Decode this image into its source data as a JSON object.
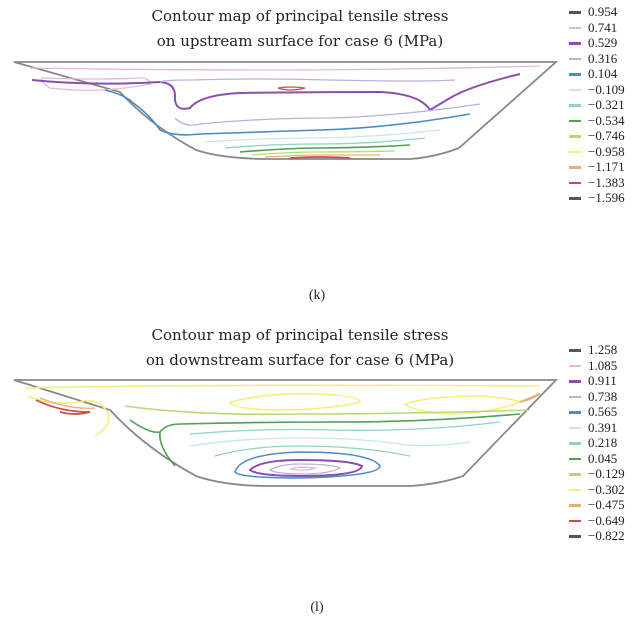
{
  "chart_data": [
    {
      "type": "contour",
      "title": [
        "Contour map of principal tensile stress",
        "on upstream surface for case 6 (MPa)"
      ],
      "caption": "(k)",
      "legend": [
        {
          "value": "0.954",
          "color": "#555555"
        },
        {
          "value": "0.741",
          "color": "#e6b7d6"
        },
        {
          "value": "0.529",
          "color": "#8a4fb0"
        },
        {
          "value": "0.316",
          "color": "#bab0dc"
        },
        {
          "value": "0.104",
          "color": "#4a8cc4"
        },
        {
          "value": "−0.109",
          "color": "#c8e6ec"
        },
        {
          "value": "−0.321",
          "color": "#8fd3c4"
        },
        {
          "value": "−0.534",
          "color": "#4fa04f"
        },
        {
          "value": "−0.746",
          "color": "#b5db70"
        },
        {
          "value": "−0.958",
          "color": "#f3ef7a"
        },
        {
          "value": "−1.171",
          "color": "#e8b070"
        },
        {
          "value": "−1.383",
          "color": "#d24a4a"
        },
        {
          "value": "−1.596",
          "color": "#555555"
        }
      ]
    },
    {
      "type": "contour",
      "title": [
        "Contour map of principal tensile stress",
        "on downstream surface for case 6 (MPa)"
      ],
      "caption": "(l)",
      "legend": [
        {
          "value": "1.258",
          "color": "#555555"
        },
        {
          "value": "1.085",
          "color": "#e6b7d6"
        },
        {
          "value": "0.911",
          "color": "#8a4fb0"
        },
        {
          "value": "0.738",
          "color": "#bab0dc"
        },
        {
          "value": "0.565",
          "color": "#4a8cc4"
        },
        {
          "value": "0.391",
          "color": "#c8e6ec"
        },
        {
          "value": "0.218",
          "color": "#8fd3c4"
        },
        {
          "value": "0.045",
          "color": "#4fa04f"
        },
        {
          "value": "−0.129",
          "color": "#b5db70"
        },
        {
          "value": "−0.302",
          "color": "#f3ef7a"
        },
        {
          "value": "−0.475",
          "color": "#e8b070"
        },
        {
          "value": "−0.649",
          "color": "#d24a4a"
        },
        {
          "value": "−0.822",
          "color": "#555555"
        }
      ]
    }
  ]
}
